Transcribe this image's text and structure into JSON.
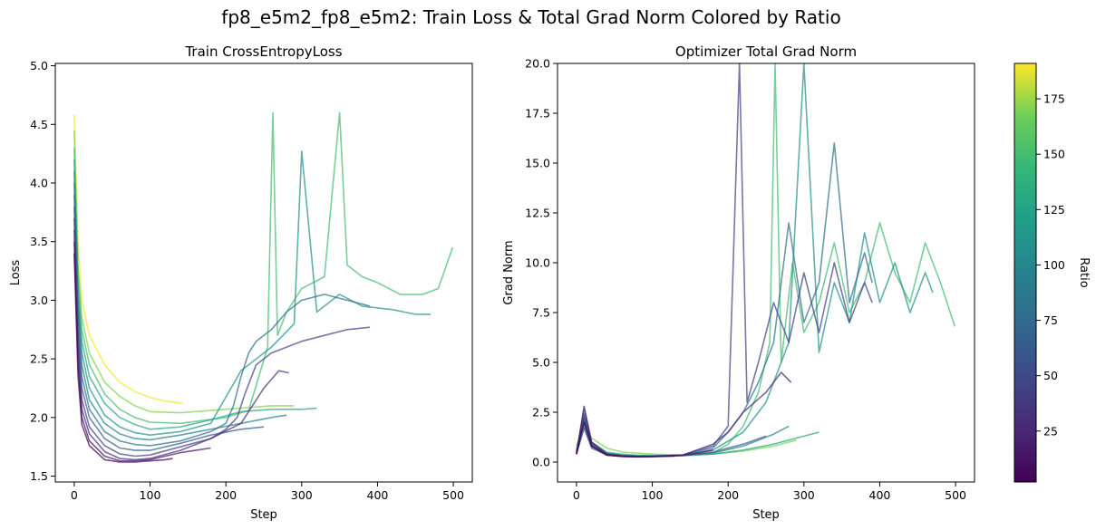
{
  "figure": {
    "suptitle": "fp8_e5m2_fp8_e5m2: Train Loss & Total Grad Norm Colored by Ratio"
  },
  "colorbar": {
    "label": "Ratio",
    "range": [
      2,
      191
    ],
    "ticks": [
      25,
      50,
      75,
      100,
      125,
      150,
      175
    ],
    "colormap": "viridis"
  },
  "chart_data": [
    {
      "type": "line",
      "title": "Train CrossEntropyLoss",
      "xlabel": "Step",
      "ylabel": "Loss",
      "xlim": [
        -25,
        525
      ],
      "ylim": [
        1.45,
        5.02
      ],
      "xticks": [
        0,
        100,
        200,
        300,
        400,
        500
      ],
      "yticks": [
        1.5,
        2.0,
        2.5,
        3.0,
        3.5,
        4.0,
        4.5,
        5.0
      ],
      "grid": false,
      "series": [
        {
          "ratio": 190,
          "x": [
            0,
            5,
            10,
            20,
            40,
            60,
            80,
            100,
            120,
            143
          ],
          "y": [
            4.58,
            3.5,
            3.0,
            2.7,
            2.45,
            2.3,
            2.22,
            2.17,
            2.14,
            2.12
          ]
        },
        {
          "ratio": 170,
          "x": [
            0,
            5,
            10,
            20,
            40,
            60,
            80,
            100,
            140,
            180,
            220,
            260,
            290
          ],
          "y": [
            4.45,
            3.3,
            2.85,
            2.55,
            2.3,
            2.18,
            2.1,
            2.05,
            2.04,
            2.06,
            2.08,
            2.1,
            2.1
          ]
        },
        {
          "ratio": 150,
          "x": [
            0,
            5,
            10,
            20,
            40,
            60,
            80,
            100,
            140,
            200,
            230,
            255,
            262,
            268,
            280,
            300,
            330,
            350,
            360,
            380,
            400,
            430,
            460,
            480,
            499
          ],
          "y": [
            4.3,
            3.2,
            2.75,
            2.45,
            2.2,
            2.07,
            2.0,
            1.96,
            1.95,
            2.0,
            2.06,
            2.6,
            4.6,
            2.7,
            2.9,
            3.1,
            3.2,
            4.6,
            3.3,
            3.2,
            3.15,
            3.05,
            3.05,
            3.1,
            3.45
          ]
        },
        {
          "ratio": 130,
          "x": [
            0,
            5,
            10,
            20,
            40,
            60,
            80,
            100,
            140,
            180,
            220,
            260,
            300,
            320
          ],
          "y": [
            4.2,
            3.1,
            2.65,
            2.35,
            2.12,
            2.0,
            1.94,
            1.9,
            1.92,
            1.98,
            2.05,
            2.07,
            2.07,
            2.08
          ]
        },
        {
          "ratio": 110,
          "x": [
            0,
            5,
            10,
            20,
            40,
            60,
            80,
            100,
            140,
            180,
            220,
            260,
            290,
            300,
            320,
            350,
            380,
            420,
            450,
            470
          ],
          "y": [
            4.1,
            3.0,
            2.55,
            2.25,
            2.02,
            1.92,
            1.87,
            1.85,
            1.88,
            1.95,
            2.4,
            2.6,
            2.8,
            4.27,
            2.9,
            3.05,
            2.95,
            2.92,
            2.88,
            2.88
          ]
        },
        {
          "ratio": 95,
          "x": [
            0,
            5,
            10,
            20,
            40,
            60,
            80,
            100,
            140,
            180,
            220,
            260,
            280
          ],
          "y": [
            4.0,
            2.95,
            2.45,
            2.15,
            1.95,
            1.86,
            1.82,
            1.81,
            1.85,
            1.9,
            1.95,
            2.0,
            2.02
          ]
        },
        {
          "ratio": 80,
          "x": [
            0,
            5,
            10,
            20,
            40,
            60,
            80,
            100,
            140,
            180,
            200,
            210,
            220,
            230,
            240,
            260,
            280,
            300,
            330,
            360,
            390
          ],
          "y": [
            3.9,
            2.85,
            2.35,
            2.07,
            1.88,
            1.8,
            1.77,
            1.76,
            1.8,
            1.88,
            1.95,
            2.1,
            2.35,
            2.55,
            2.65,
            2.75,
            2.9,
            3.0,
            3.05,
            3.0,
            2.95
          ]
        },
        {
          "ratio": 62,
          "x": [
            0,
            5,
            10,
            20,
            40,
            60,
            80,
            100,
            140,
            180,
            220,
            250
          ],
          "y": [
            3.8,
            2.75,
            2.25,
            2.0,
            1.82,
            1.74,
            1.72,
            1.72,
            1.78,
            1.85,
            1.9,
            1.92
          ]
        },
        {
          "ratio": 45,
          "x": [
            0,
            5,
            10,
            20,
            40,
            60,
            80,
            100,
            140,
            180,
            200,
            215,
            225,
            240,
            260,
            300,
            330,
            360,
            390
          ],
          "y": [
            3.7,
            2.65,
            2.15,
            1.92,
            1.76,
            1.69,
            1.67,
            1.68,
            1.75,
            1.82,
            1.9,
            2.0,
            2.2,
            2.45,
            2.55,
            2.65,
            2.7,
            2.75,
            2.77
          ]
        },
        {
          "ratio": 30,
          "x": [
            0,
            5,
            10,
            20,
            40,
            60,
            80,
            100,
            140,
            180,
            220,
            250,
            270,
            283
          ],
          "y": [
            3.6,
            2.55,
            2.07,
            1.86,
            1.71,
            1.65,
            1.64,
            1.65,
            1.72,
            1.82,
            1.95,
            2.25,
            2.4,
            2.38
          ]
        },
        {
          "ratio": 15,
          "x": [
            0,
            5,
            10,
            20,
            40,
            60,
            80,
            100,
            120,
            140,
            160,
            180
          ],
          "y": [
            3.5,
            2.45,
            2.0,
            1.8,
            1.67,
            1.63,
            1.63,
            1.64,
            1.67,
            1.7,
            1.72,
            1.74
          ]
        },
        {
          "ratio": 5,
          "x": [
            0,
            5,
            10,
            20,
            40,
            60,
            80,
            100,
            120,
            130
          ],
          "y": [
            3.4,
            2.35,
            1.94,
            1.76,
            1.64,
            1.62,
            1.62,
            1.63,
            1.64,
            1.65
          ]
        }
      ]
    },
    {
      "type": "line",
      "title": "Optimizer Total Grad Norm",
      "xlabel": "Step",
      "ylabel": "Grad Norm",
      "xlim": [
        -25,
        525
      ],
      "ylim": [
        -1.0,
        20.0
      ],
      "xticks": [
        0,
        100,
        200,
        300,
        400,
        500
      ],
      "yticks": [
        0.0,
        2.5,
        5.0,
        7.5,
        10.0,
        12.5,
        15.0,
        17.5,
        20.0
      ],
      "grid": false,
      "series": [
        {
          "ratio": 170,
          "x": [
            0,
            10,
            20,
            40,
            60,
            80,
            100,
            140,
            180,
            220,
            260,
            290
          ],
          "y": [
            0.8,
            1.9,
            1.2,
            0.7,
            0.5,
            0.45,
            0.4,
            0.35,
            0.4,
            0.55,
            0.8,
            1.1
          ]
        },
        {
          "ratio": 150,
          "x": [
            0,
            10,
            20,
            40,
            60,
            80,
            100,
            140,
            180,
            200,
            220,
            240,
            255,
            262,
            270,
            285,
            300,
            320,
            340,
            360,
            380,
            400,
            420,
            440,
            460,
            480,
            499
          ],
          "y": [
            0.6,
            2.2,
            1.0,
            0.5,
            0.4,
            0.35,
            0.33,
            0.33,
            0.45,
            0.9,
            1.8,
            3.5,
            6.0,
            20.0,
            5.0,
            10.0,
            6.5,
            8.0,
            11.0,
            7.5,
            9.0,
            12.0,
            9.5,
            8.0,
            11.0,
            9.0,
            6.8
          ]
        },
        {
          "ratio": 130,
          "x": [
            0,
            10,
            20,
            40,
            60,
            80,
            100,
            140,
            180,
            220,
            260,
            300,
            320
          ],
          "y": [
            0.6,
            2.0,
            0.9,
            0.45,
            0.35,
            0.32,
            0.3,
            0.32,
            0.4,
            0.6,
            0.9,
            1.3,
            1.5
          ]
        },
        {
          "ratio": 110,
          "x": [
            0,
            10,
            20,
            40,
            60,
            80,
            100,
            140,
            180,
            220,
            250,
            280,
            300,
            320,
            340,
            360,
            380,
            400,
            420,
            440,
            460,
            470
          ],
          "y": [
            0.5,
            2.6,
            1.0,
            0.45,
            0.35,
            0.3,
            0.3,
            0.35,
            0.6,
            1.5,
            3.0,
            6.0,
            20.0,
            5.5,
            9.0,
            7.0,
            11.5,
            8.0,
            10.0,
            7.5,
            9.5,
            8.5
          ]
        },
        {
          "ratio": 95,
          "x": [
            0,
            10,
            20,
            40,
            60,
            80,
            100,
            140,
            180,
            220,
            260,
            280
          ],
          "y": [
            0.5,
            1.8,
            0.8,
            0.4,
            0.32,
            0.3,
            0.3,
            0.33,
            0.45,
            0.8,
            1.4,
            1.8
          ]
        },
        {
          "ratio": 80,
          "x": [
            0,
            10,
            20,
            40,
            60,
            80,
            100,
            140,
            180,
            200,
            220,
            240,
            260,
            280,
            300,
            320,
            340,
            360,
            380,
            390
          ],
          "y": [
            0.5,
            2.0,
            0.8,
            0.4,
            0.32,
            0.3,
            0.3,
            0.35,
            0.7,
            1.5,
            2.5,
            4.0,
            6.0,
            12.0,
            7.0,
            9.0,
            16.0,
            8.0,
            10.5,
            9.0
          ]
        },
        {
          "ratio": 62,
          "x": [
            0,
            10,
            20,
            40,
            60,
            80,
            100,
            140,
            180,
            220,
            250
          ],
          "y": [
            0.4,
            1.7,
            0.7,
            0.35,
            0.3,
            0.28,
            0.28,
            0.32,
            0.5,
            0.9,
            1.3
          ]
        },
        {
          "ratio": 45,
          "x": [
            0,
            10,
            20,
            40,
            60,
            80,
            100,
            140,
            180,
            200,
            215,
            225,
            240,
            260,
            280,
            300,
            320,
            340,
            360,
            380,
            390
          ],
          "y": [
            0.4,
            2.2,
            0.8,
            0.35,
            0.3,
            0.28,
            0.3,
            0.35,
            0.8,
            1.8,
            20.0,
            3.0,
            5.0,
            8.0,
            6.0,
            9.5,
            6.5,
            10.0,
            7.0,
            9.0,
            8.0
          ]
        },
        {
          "ratio": 30,
          "x": [
            0,
            10,
            20,
            40,
            60,
            80,
            100,
            140,
            180,
            200,
            220,
            250,
            270,
            283
          ],
          "y": [
            0.4,
            2.4,
            0.9,
            0.35,
            0.28,
            0.27,
            0.28,
            0.35,
            0.9,
            1.5,
            2.5,
            3.5,
            4.5,
            4.0
          ]
        },
        {
          "ratio": 15,
          "x": [
            0,
            10,
            20,
            40,
            60,
            80,
            100,
            120,
            140,
            160,
            180
          ],
          "y": [
            0.4,
            2.8,
            1.0,
            0.4,
            0.3,
            0.27,
            0.28,
            0.3,
            0.35,
            0.45,
            0.6
          ]
        },
        {
          "ratio": 5,
          "x": [
            0,
            10,
            20,
            40,
            60,
            80,
            100,
            120,
            130
          ],
          "y": [
            0.4,
            2.0,
            0.8,
            0.35,
            0.28,
            0.26,
            0.27,
            0.29,
            0.3
          ]
        }
      ]
    }
  ]
}
